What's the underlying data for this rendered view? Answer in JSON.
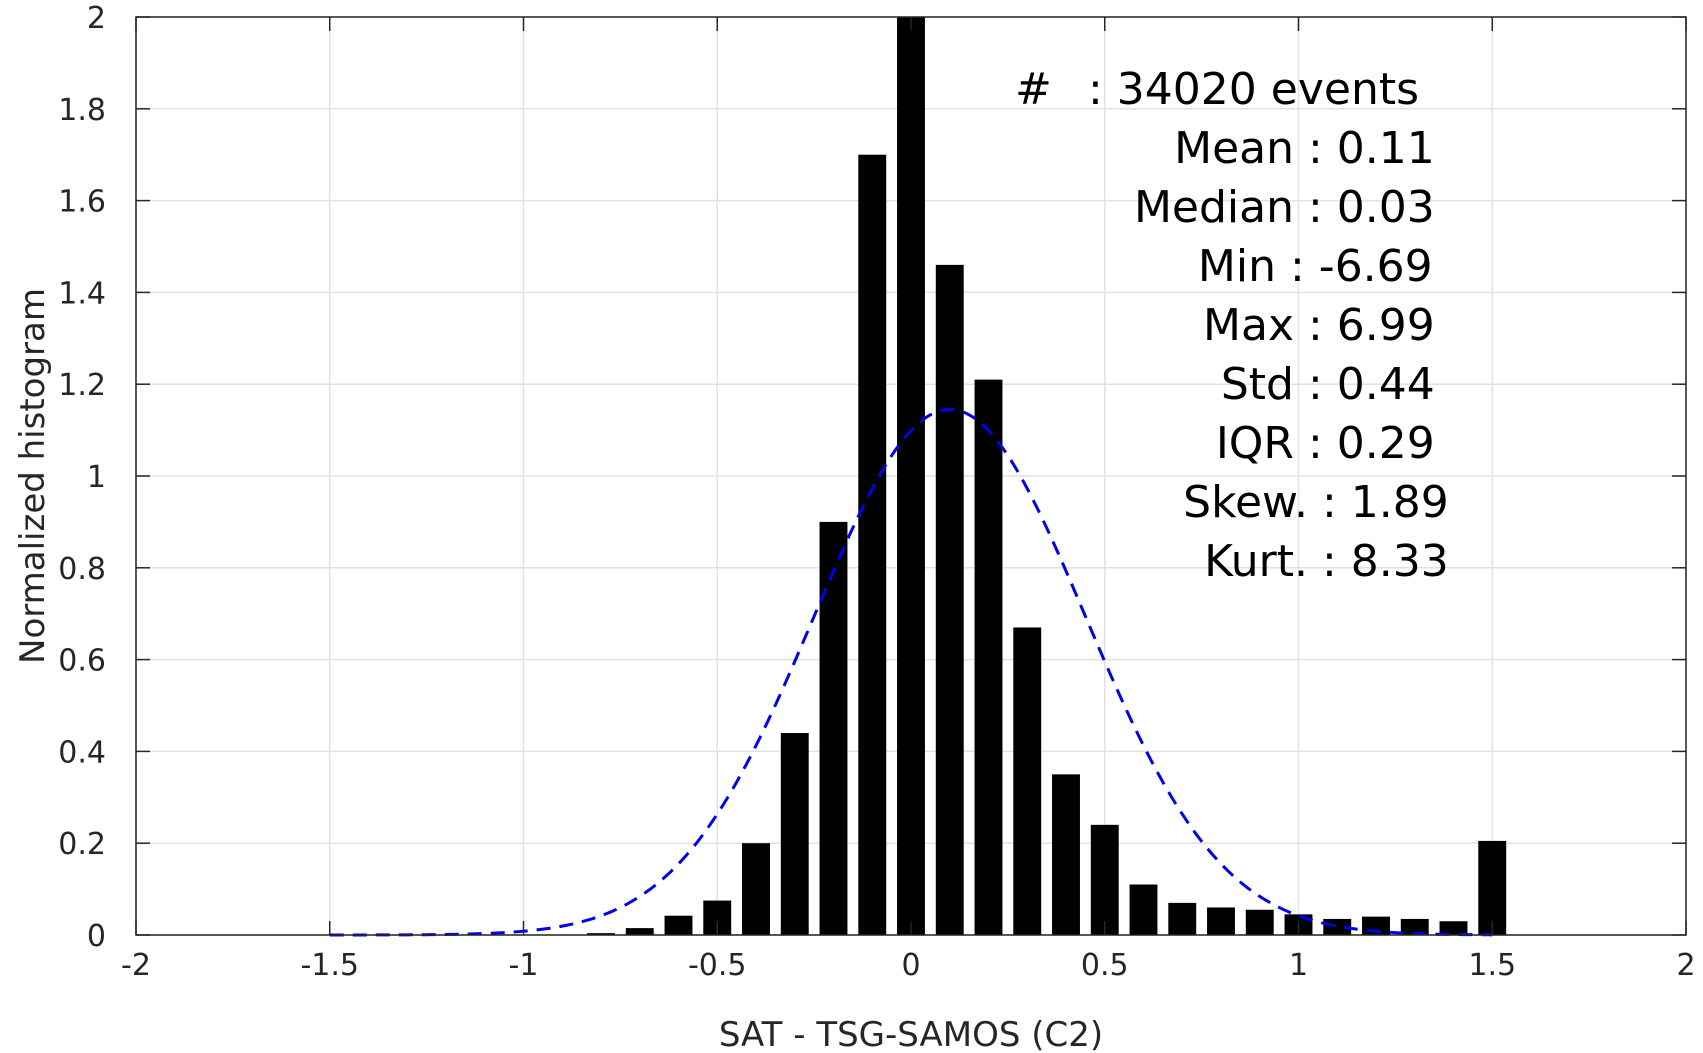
{
  "chart_data": {
    "type": "bar",
    "xlabel": "SAT - TSG-SAMOS (C2)",
    "ylabel": "Normalized histogram",
    "xlim": [
      -2,
      2
    ],
    "ylim": [
      0,
      2
    ],
    "grid": true,
    "x_ticks": [
      "-2",
      "-1.5",
      "-1",
      "-0.5",
      "0",
      "0.5",
      "1",
      "1.5",
      "2"
    ],
    "y_ticks": [
      "0",
      "0.2",
      "0.4",
      "0.6",
      "0.8",
      "1",
      "1.2",
      "1.4",
      "1.6",
      "1.8",
      "2"
    ],
    "bin_width": 0.1,
    "bar_color": "#000000",
    "bars": {
      "x": [
        -0.8,
        -0.7,
        -0.6,
        -0.5,
        -0.4,
        -0.3,
        -0.2,
        -0.1,
        0.0,
        0.1,
        0.2,
        0.3,
        0.4,
        0.5,
        0.6,
        0.7,
        0.8,
        0.9,
        1.0,
        1.1,
        1.2,
        1.3,
        1.4,
        1.5
      ],
      "values": [
        0.004,
        0.015,
        0.042,
        0.075,
        0.2,
        0.44,
        0.9,
        1.7,
        2.0,
        1.46,
        1.21,
        0.67,
        0.35,
        0.24,
        0.11,
        0.07,
        0.06,
        0.055,
        0.045,
        0.035,
        0.04,
        0.035,
        0.03,
        0.205
      ]
    },
    "fit_curve": {
      "style": "dashed",
      "color": "#0000ee",
      "mean": 0.1,
      "std": 0.35,
      "peak": 1.145,
      "x_range": [
        -1.5,
        1.5
      ]
    },
    "stats": [
      {
        "label": "#",
        "value": ": 34020 events"
      },
      {
        "label": "Mean",
        "value": ": 0.11"
      },
      {
        "label": "Median",
        "value": ": 0.03"
      },
      {
        "label": "Min",
        "value": ": -6.69"
      },
      {
        "label": "Max",
        "value": ": 6.99"
      },
      {
        "label": "Std",
        "value": ": 0.44"
      },
      {
        "label": "IQR",
        "value": ": 0.29"
      },
      {
        "label": "Skew.",
        "value": ": 1.89"
      },
      {
        "label": "Kurt.",
        "value": ": 8.33"
      }
    ]
  }
}
